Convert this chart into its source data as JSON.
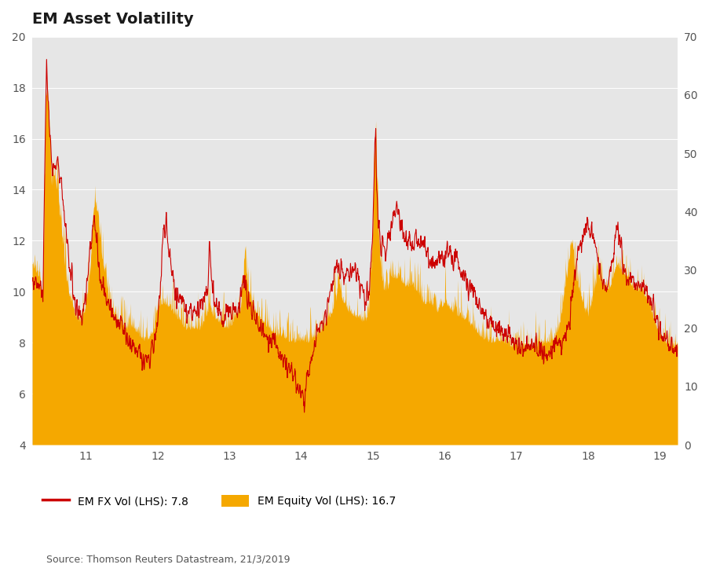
{
  "title": "EM Asset Volatility",
  "source": "Source: Thomson Reuters Datastream, 21/3/2019",
  "legend_fx": "EM FX Vol (LHS): 7.8",
  "legend_eq": "EM Equity Vol (LHS): 16.7",
  "xlim": [
    10.25,
    19.25
  ],
  "ylim_left": [
    4,
    20
  ],
  "ylim_right": [
    0,
    70
  ],
  "yticks_left": [
    4,
    6,
    8,
    10,
    12,
    14,
    16,
    18,
    20
  ],
  "yticks_right": [
    0,
    10,
    20,
    30,
    40,
    50,
    60,
    70
  ],
  "xticks": [
    11,
    12,
    13,
    14,
    15,
    16,
    17,
    18,
    19
  ],
  "background_color": "#e6e6e6",
  "fx_color": "#cc0000",
  "eq_color": "#f5a800",
  "title_fontsize": 14,
  "axis_fontsize": 10,
  "source_fontsize": 9
}
